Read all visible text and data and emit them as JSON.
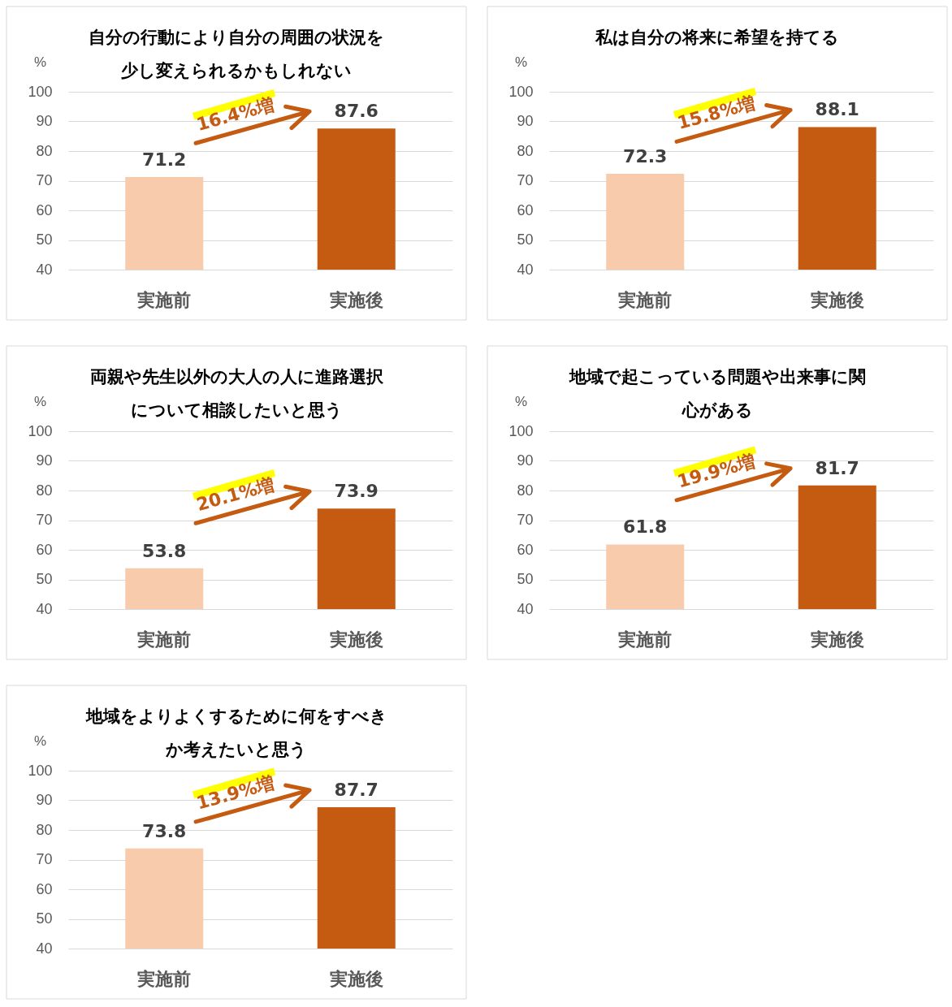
{
  "chart_data": [
    {
      "type": "bar",
      "title": "自分の行動により自分の周囲の状況を少し変えられるかもしれない",
      "ylabel": "%",
      "categories": [
        "実施前",
        "実施後"
      ],
      "values": [
        71.2,
        87.6
      ],
      "colors": [
        "#f8cbad",
        "#c55a11"
      ],
      "ylim": [
        40,
        100
      ],
      "yticks": [
        40,
        50,
        60,
        70,
        80,
        90,
        100
      ],
      "grid": "y",
      "data_labels": true,
      "annotations": [
        "16.4%増"
      ]
    },
    {
      "type": "bar",
      "title": "私は自分の将来に希望を持てる",
      "ylabel": "%",
      "categories": [
        "実施前",
        "実施後"
      ],
      "values": [
        72.3,
        88.1
      ],
      "colors": [
        "#f8cbad",
        "#c55a11"
      ],
      "ylim": [
        40,
        100
      ],
      "yticks": [
        40,
        50,
        60,
        70,
        80,
        90,
        100
      ],
      "grid": "y",
      "data_labels": true,
      "annotations": [
        "15.8%増"
      ]
    },
    {
      "type": "bar",
      "title": "両親や先生以外の大人の人に進路選択について相談したいと思う",
      "ylabel": "%",
      "categories": [
        "実施前",
        "実施後"
      ],
      "values": [
        53.8,
        73.9
      ],
      "colors": [
        "#f8cbad",
        "#c55a11"
      ],
      "ylim": [
        40,
        100
      ],
      "yticks": [
        40,
        50,
        60,
        70,
        80,
        90,
        100
      ],
      "grid": "y",
      "data_labels": true,
      "annotations": [
        "20.1%増"
      ]
    },
    {
      "type": "bar",
      "title": "地域で起こっている問題や出来事に関心がある",
      "ylabel": "%",
      "categories": [
        "実施前",
        "実施後"
      ],
      "values": [
        61.8,
        81.7
      ],
      "colors": [
        "#f8cbad",
        "#c55a11"
      ],
      "ylim": [
        40,
        100
      ],
      "yticks": [
        40,
        50,
        60,
        70,
        80,
        90,
        100
      ],
      "grid": "y",
      "data_labels": true,
      "annotations": [
        "19.9%増"
      ]
    },
    {
      "type": "bar",
      "title": "地域をよりよくするために何をすべきか考えたいと思う",
      "ylabel": "%",
      "categories": [
        "実施前",
        "実施後"
      ],
      "values": [
        73.8,
        87.7
      ],
      "colors": [
        "#f8cbad",
        "#c55a11"
      ],
      "ylim": [
        40,
        100
      ],
      "yticks": [
        40,
        50,
        60,
        70,
        80,
        90,
        100
      ],
      "grid": "y",
      "data_labels": true,
      "annotations": [
        "13.9%増"
      ]
    }
  ]
}
